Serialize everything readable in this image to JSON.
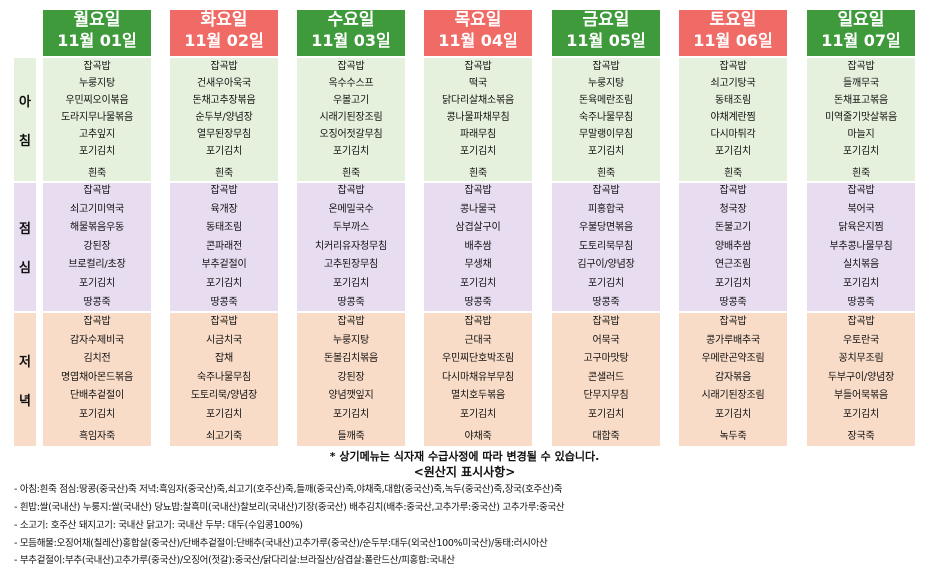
{
  "colors": {
    "weekday": "#3f9a3c",
    "holiday": "#f06a66",
    "breakfast_bg": "#e5f1dd",
    "lunch_bg": "#e8dcf0",
    "dinner_bg": "#f9dcc8"
  },
  "days": [
    {
      "name": "월요일",
      "date": "11월  01일",
      "type": "weekday"
    },
    {
      "name": "화요일",
      "date": "11월  02일",
      "type": "holiday"
    },
    {
      "name": "수요일",
      "date": "11월  03일",
      "type": "weekday"
    },
    {
      "name": "목요일",
      "date": "11월  04일",
      "type": "holiday"
    },
    {
      "name": "금요일",
      "date": "11월  05일",
      "type": "weekday"
    },
    {
      "name": "토요일",
      "date": "11월  06일",
      "type": "holiday"
    },
    {
      "name": "일요일",
      "date": "11월  07일",
      "type": "weekday"
    }
  ],
  "meals": [
    {
      "label": [
        "아",
        "침"
      ],
      "bg": "breakfast",
      "menus": [
        [
          "잡곡밥",
          "누룽지탕",
          "우민찌오이볶음",
          "도라지무나물볶음",
          "고추잎지",
          "포기김치",
          "흰죽"
        ],
        [
          "잡곡밥",
          "건새우아욱국",
          "돈채고추장볶음",
          "순두부/양념장",
          "열무된장무침",
          "포기김치",
          "흰죽"
        ],
        [
          "잡곡밥",
          "옥수수스프",
          "우볼고기",
          "시래기된장조림",
          "오징어젓갈무침",
          "포기김치",
          "흰죽"
        ],
        [
          "잡곡밥",
          "떡국",
          "닭다리살채소볶음",
          "콩나물파채무침",
          "파래무침",
          "포기김치",
          "흰죽"
        ],
        [
          "잡곡밥",
          "누룽지탕",
          "돈육메란조림",
          "숙주나물무침",
          "무말랭이무침",
          "포기김치",
          "흰죽"
        ],
        [
          "잡곡밥",
          "쇠고기탕국",
          "동태조림",
          "야채계란찜",
          "다시마튀각",
          "포기김치",
          "흰죽"
        ],
        [
          "잡곡밥",
          "들깨무국",
          "돈채표고볶음",
          "미역줄기맛살볶음",
          "마늘지",
          "포기김치",
          "흰죽"
        ]
      ]
    },
    {
      "label": [
        "점",
        "심"
      ],
      "bg": "lunch",
      "menus": [
        [
          "잡곡밥",
          "쇠고기미역국",
          "해물볶음우동",
          "강된장",
          "브로컬리/초장",
          "포기김치",
          "땅콩죽"
        ],
        [
          "잡곡밥",
          "육개장",
          "동태조림",
          "콘파래전",
          "부추겉절이",
          "포기김치",
          "땅콩죽"
        ],
        [
          "잡곡밥",
          "온메밀국수",
          "두부까스",
          "치커리유자청무침",
          "고추된장무침",
          "포기김치",
          "땅콩죽"
        ],
        [
          "잡곡밥",
          "콩나물국",
          "삼겹살구이",
          "배추쌈",
          "무생채",
          "포기김치",
          "땅콩죽"
        ],
        [
          "잡곡밥",
          "피홍합국",
          "우불당면볶음",
          "도토리묵무침",
          "김구이/양념장",
          "포기김치",
          "땅콩죽"
        ],
        [
          "잡곡밥",
          "청국장",
          "돈불고기",
          "양배추쌈",
          "연근조림",
          "포기김치",
          "땅콩죽"
        ],
        [
          "잡곡밥",
          "북어국",
          "닭육은지찜",
          "부추콩나물무침",
          "실치볶음",
          "포기김치",
          "땅콩죽"
        ]
      ]
    },
    {
      "label": [
        "저",
        "녁"
      ],
      "bg": "dinner",
      "menus": [
        [
          "잡곡밥",
          "감자수제비국",
          "김치전",
          "명엽채아몬드볶음",
          "단배추겉절이",
          "포기김치",
          "흑임자죽"
        ],
        [
          "잡곡밥",
          "시금치국",
          "잡채",
          "숙주나물무침",
          "도토리묵/양념장",
          "포기김치",
          "쇠고기죽"
        ],
        [
          "잡곡밥",
          "누룽지탕",
          "돈볼김치볶음",
          "강된장",
          "양념깻잎지",
          "포기김치",
          "들깨죽"
        ],
        [
          "잡곡밥",
          "근대국",
          "우민찌단호박조림",
          "다시마채유부무침",
          "멸치호두볶음",
          "포기김치",
          "야채죽"
        ],
        [
          "잡곡밥",
          "어묵국",
          "고구마맛탕",
          "콘샐러드",
          "단무지무침",
          "포기김치",
          "대합죽"
        ],
        [
          "잡곡밥",
          "콩가루배추국",
          "우메란곤약조림",
          "감자볶음",
          "시래기된장조림",
          "포기김치",
          "녹두죽"
        ],
        [
          "잡곡밥",
          "우토란국",
          "꽁치무조림",
          "두부구이/양념장",
          "부들어묵볶음",
          "포기김치",
          "장국죽"
        ]
      ]
    }
  ],
  "notice": "* 상기메뉴는 식자재 수급사정에 따라 변경될 수 있습니다.",
  "origin_title": "<원산지 표시사항>",
  "origin_lines": [
    "- 아침:흰죽  점심:땅콩(중국산)죽  저녁:흑임자(중국산)죽,쇠고기(호주산)죽,들깨(중국산)죽,야채죽,대합(중국산)죽,녹두(중국산)죽,장국(호주산)죽",
    "- 흰밥:쌀(국내산)  누룽지:쌀(국내산)  당뇨밥:찰흑미(국내산)찰보리(국내산)기장(중국산)  배추김치(배추:중국산,고추가루:중국산) 고추가루:중국산",
    "- 소고기: 호주산  돼지고기:  국내산  닭고기:  국내산  두부: 대두(수입콩100%)",
    "- 모듬해물:오징어채(칠레산)홍합살(중국산)/단배추겉절이:단배추(국내산)고추가루(중국산)/순두부:대두(외국산100%미국산)/동태:러시아산",
    "- 부추겉절이:부추(국내산)고추가루(중국산)/오징어(젓갈):중국산/닭다리살:브라질산/삼겹살:폴란드산/피홍합:국내산"
  ]
}
